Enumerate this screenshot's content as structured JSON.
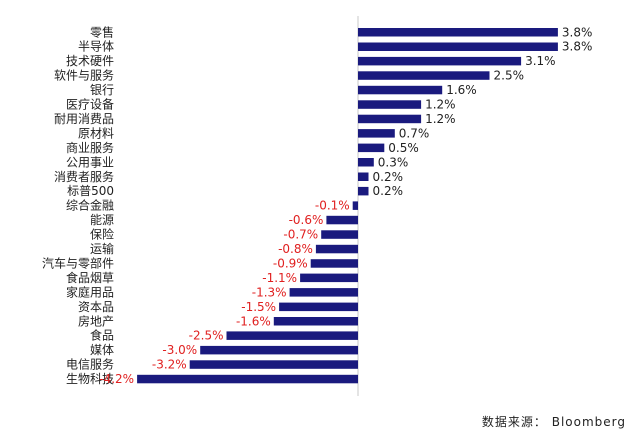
{
  "chart_data": {
    "type": "bar",
    "orientation": "horizontal",
    "categories": [
      "零售",
      "半导体",
      "技术硬件",
      "软件与服务",
      "银行",
      "医疗设备",
      "耐用消费品",
      "原材料",
      "商业服务",
      "公用事业",
      "消费者服务",
      "标普500",
      "综合金融",
      "能源",
      "保险",
      "运输",
      "汽车与零部件",
      "食品烟草",
      "家庭用品",
      "资本品",
      "房地产",
      "食品",
      "媒体",
      "电信服务",
      "生物科技"
    ],
    "values": [
      3.8,
      3.8,
      3.1,
      2.5,
      1.6,
      1.2,
      1.2,
      0.7,
      0.5,
      0.3,
      0.2,
      0.2,
      -0.1,
      -0.6,
      -0.7,
      -0.8,
      -0.9,
      -1.1,
      -1.3,
      -1.5,
      -1.6,
      -2.5,
      -3.0,
      -3.2,
      -4.2
    ],
    "value_labels": [
      "3.8%",
      "3.8%",
      "3.1%",
      "2.5%",
      "1.6%",
      "1.2%",
      "1.2%",
      "0.7%",
      "0.5%",
      "0.3%",
      "0.2%",
      "0.2%",
      "-0.1%",
      "-0.6%",
      "-0.7%",
      "-0.8%",
      "-0.9%",
      "-1.1%",
      "-1.3%",
      "-1.5%",
      "-1.6%",
      "-2.5%",
      "-3.0%",
      "-3.2%",
      "-4.2%"
    ],
    "unit": "%",
    "title": "",
    "xlabel": "",
    "ylabel": "",
    "xlim": [
      -4.2,
      3.8
    ],
    "grid": false,
    "legend": "none",
    "colors": {
      "bar": "#1a1a7e",
      "positive_label": "#222222",
      "negative_label": "#e02020",
      "axis": "#c8c8c8"
    }
  },
  "source_note": "数据来源：  Bloomberg"
}
